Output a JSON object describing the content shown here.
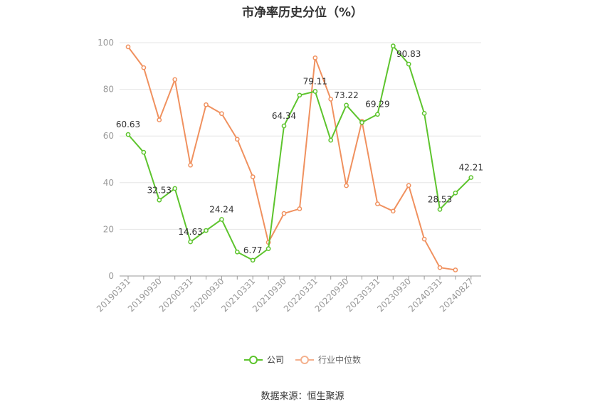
{
  "chart_data": {
    "type": "line",
    "title": "市净率历史分位（%）",
    "source": "数据来源：恒生聚源",
    "ylim": [
      0,
      100
    ],
    "yticks": [
      "0",
      "20",
      "40",
      "60",
      "80",
      "100"
    ],
    "x_tick_labels": [
      "20190331",
      "20190930",
      "20200331",
      "20200930",
      "20210331",
      "20210930",
      "20220331",
      "20220930",
      "20230331",
      "20230930",
      "20240331",
      "20240827"
    ],
    "grid": true,
    "legend_position": "bottom",
    "series": [
      {
        "name": "公司",
        "color": "#5dc42d",
        "values": [
          60.63,
          53,
          32.53,
          37.5,
          14.63,
          19.5,
          24.24,
          10.3,
          6.77,
          11.7,
          64.34,
          77.5,
          79.11,
          58.2,
          73.22,
          65.8,
          69.29,
          98.6,
          90.83,
          69.7,
          28.53,
          35.6,
          42.21
        ],
        "labels": {
          "0": "60.63",
          "2": "32.53",
          "4": "14.63",
          "6": "24.24",
          "8": "6.77",
          "10": "64.34",
          "12": "79.11",
          "14": "73.22",
          "16": "69.29",
          "18": "90.83",
          "20": "28.53",
          "22": "42.21"
        }
      },
      {
        "name": "行业中位数",
        "color": "#f0915f",
        "values": [
          98.2,
          89.3,
          66.9,
          84.2,
          47.5,
          73.4,
          69.6,
          58.6,
          42.5,
          14.4,
          26.8,
          28.8,
          93.5,
          75.8,
          38.7,
          66.3,
          30.9,
          27.8,
          38.8,
          15.8,
          3.6,
          2.6,
          null
        ]
      }
    ]
  }
}
